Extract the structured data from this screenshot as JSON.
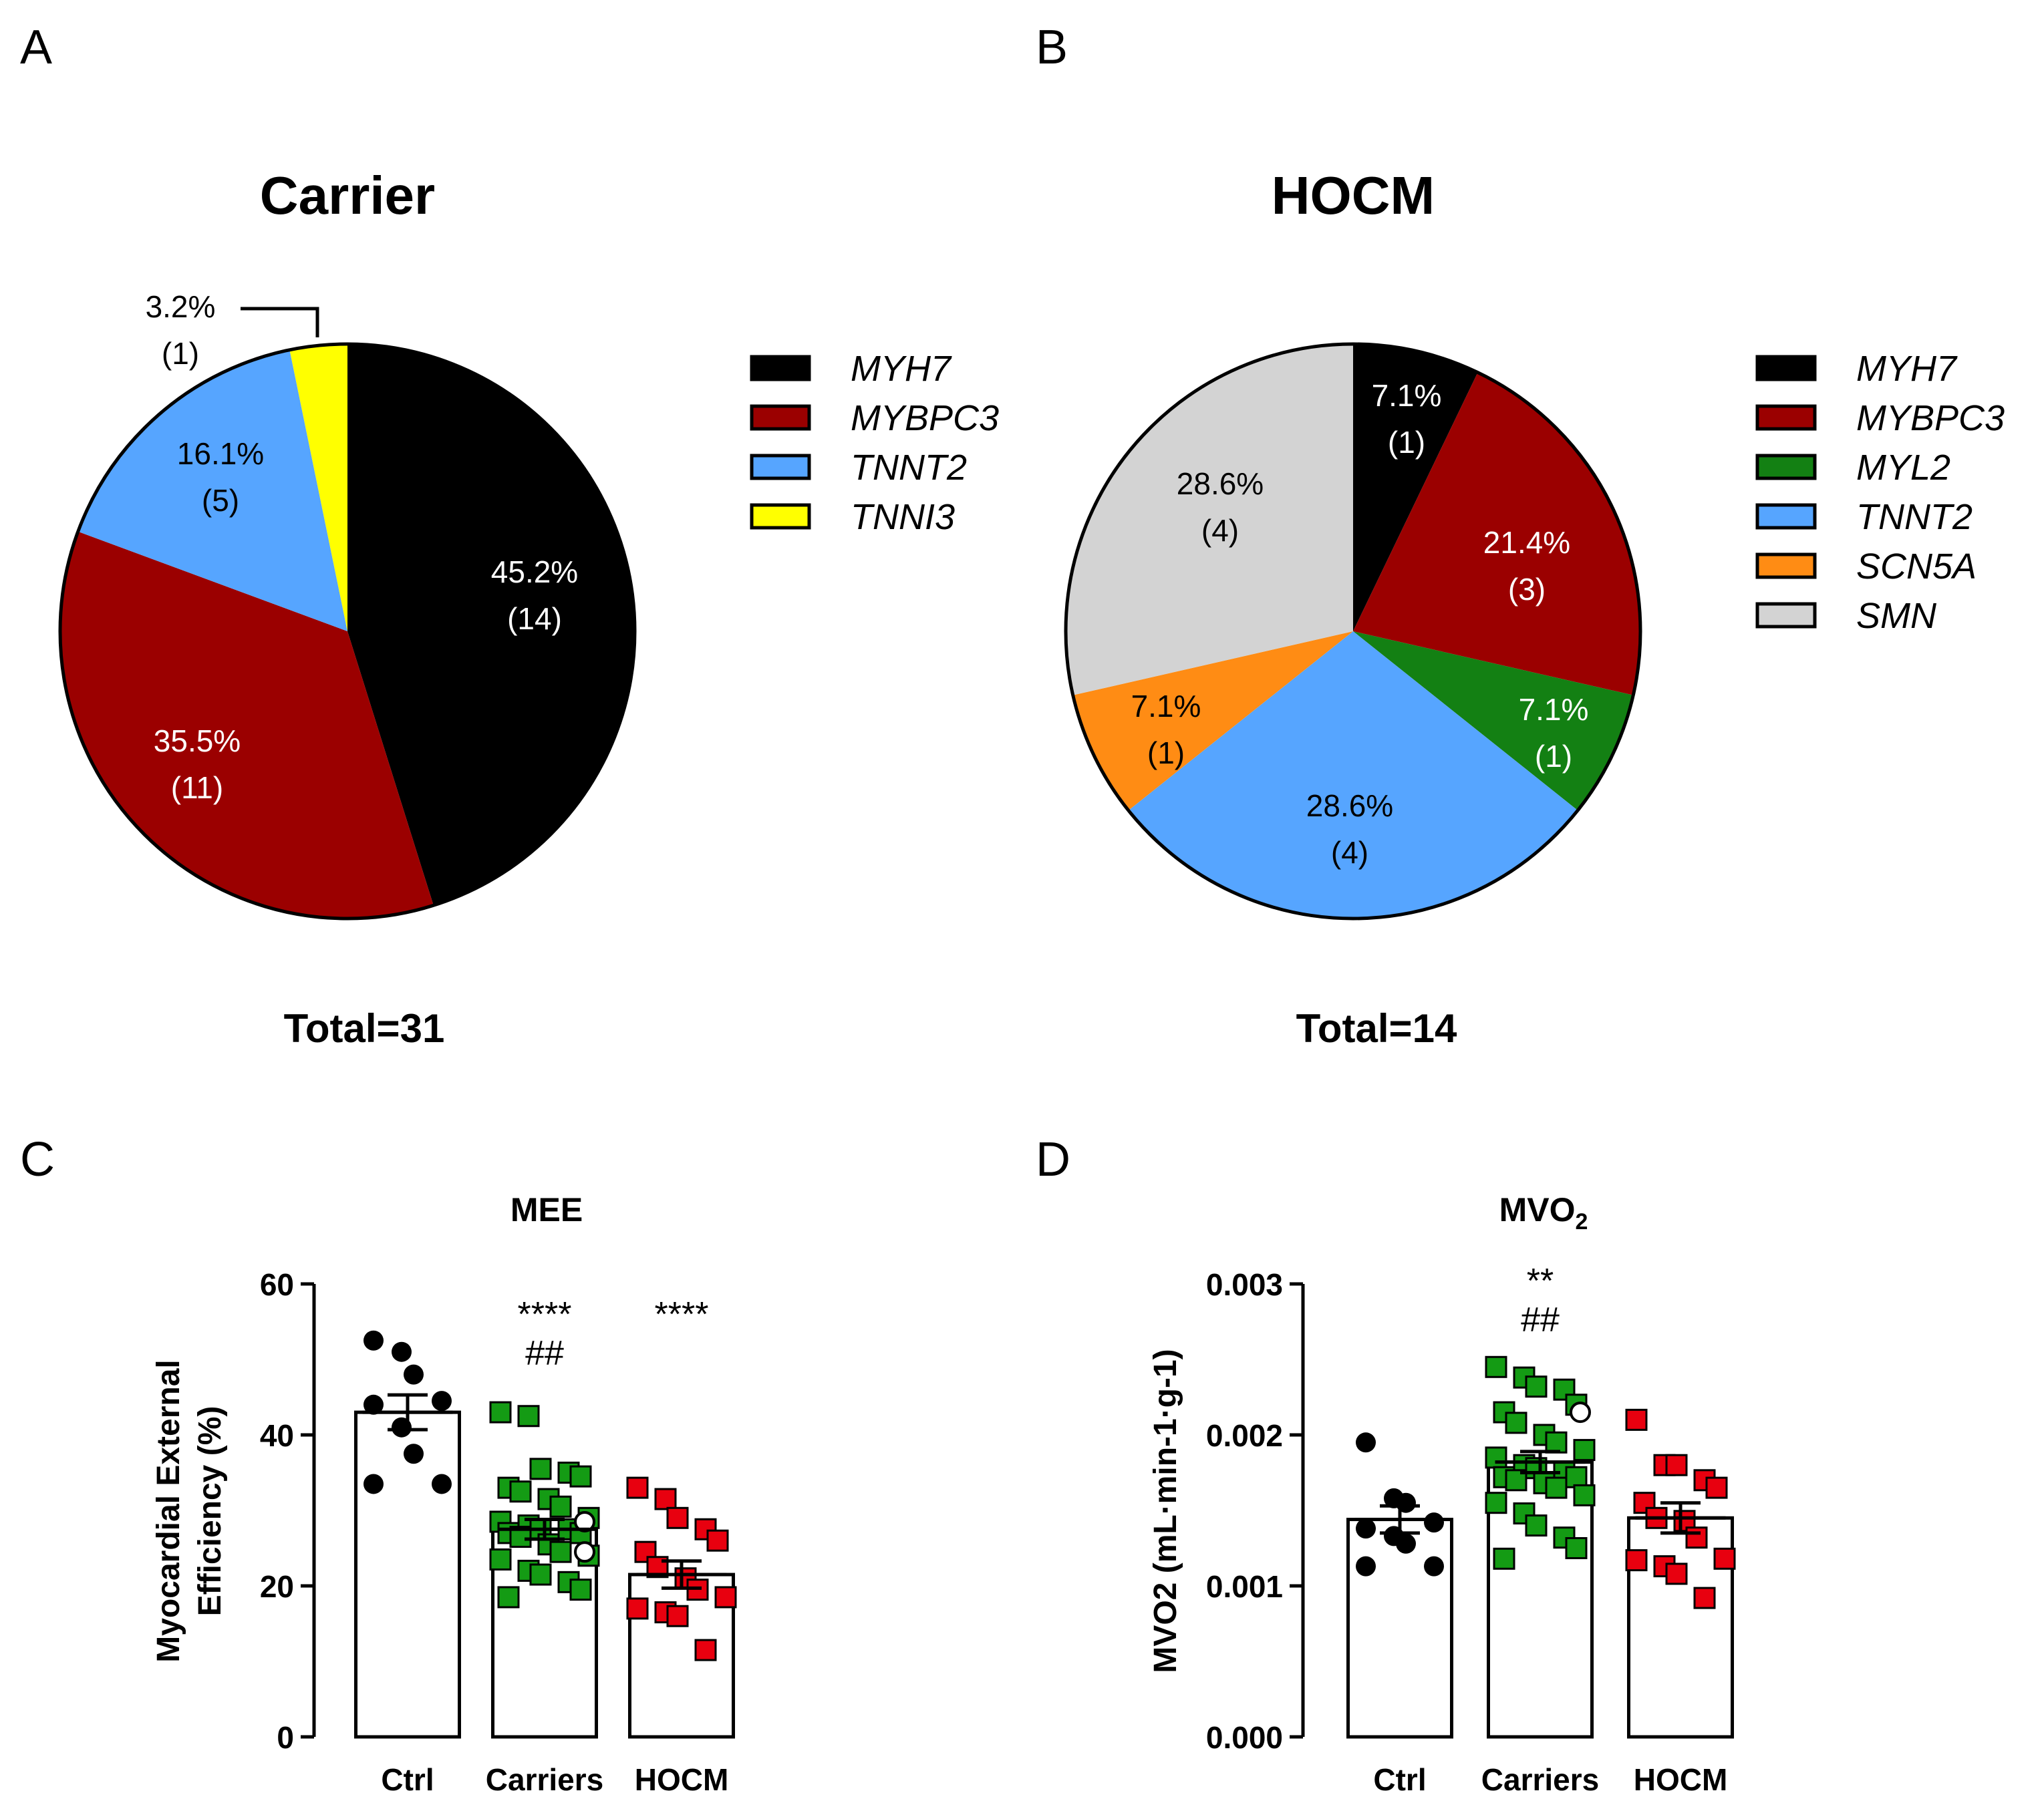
{
  "panel_letters": [
    "A",
    "B",
    "C",
    "D"
  ],
  "chart_data": [
    {
      "type": "pie",
      "title": "Carrier",
      "total_label": "Total=31",
      "slices": [
        {
          "gene": "MYH7",
          "count": 14,
          "percent_label": "45.2%",
          "count_label": "(14)",
          "color": "#000000",
          "label_color": "#ffffff"
        },
        {
          "gene": "MYBPC3",
          "count": 11,
          "percent_label": "35.5%",
          "count_label": "(11)",
          "color": "#9b0000",
          "label_color": "#ffffff"
        },
        {
          "gene": "TNNT2",
          "count": 5,
          "percent_label": "16.1%",
          "count_label": "(5)",
          "color": "#56a5ff",
          "label_color": "#000000"
        },
        {
          "gene": "TNNI3",
          "count": 1,
          "percent_label": "3.2%",
          "count_label": "(1)",
          "color": "#ffff00",
          "label_color": "#000000",
          "callout": true
        }
      ],
      "legend": [
        "MYH7",
        "MYBPC3",
        "TNNT2",
        "TNNI3"
      ]
    },
    {
      "type": "pie",
      "title": "HOCM",
      "total_label": "Total=14",
      "slices": [
        {
          "gene": "MYH7",
          "count": 1,
          "percent_label": "7.1%",
          "count_label": "(1)",
          "color": "#000000",
          "label_color": "#ffffff"
        },
        {
          "gene": "MYBPC3",
          "count": 3,
          "percent_label": "21.4%",
          "count_label": "(3)",
          "color": "#9b0000",
          "label_color": "#ffffff"
        },
        {
          "gene": "MYL2",
          "count": 1,
          "percent_label": "7.1%",
          "count_label": "(1)",
          "color": "#138013",
          "label_color": "#ffffff"
        },
        {
          "gene": "TNNT2",
          "count": 4,
          "percent_label": "28.6%",
          "count_label": "(4)",
          "color": "#56a5ff",
          "label_color": "#000000"
        },
        {
          "gene": "SCN5A",
          "count": 1,
          "percent_label": "7.1%",
          "count_label": "(1)",
          "color": "#ff8c14",
          "label_color": "#000000"
        },
        {
          "gene": "SMN",
          "count": 4,
          "percent_label": "28.6%",
          "count_label": "(4)",
          "color": "#d3d3d3",
          "label_color": "#000000"
        }
      ],
      "legend": [
        "MYH7",
        "MYBPC3",
        "MYL2",
        "TNNT2",
        "SCN5A",
        "SMN"
      ]
    },
    {
      "type": "bar",
      "title": "MEE",
      "ylabel_lines": [
        "Myocardial External",
        "Efficiency (%)"
      ],
      "ylim": [
        0,
        60
      ],
      "yticks": [
        0,
        20,
        40,
        60
      ],
      "tick_labels": [
        "0",
        "20",
        "40",
        "60"
      ],
      "categories": [
        "Ctrl",
        "Carriers",
        "HOCM"
      ],
      "means": [
        43,
        27.5,
        21.5
      ],
      "sem": [
        2.3,
        1.3,
        1.8
      ],
      "annotations": [
        [],
        [
          "****",
          "##"
        ],
        [
          "****"
        ]
      ],
      "marker_colors": [
        "#000000",
        "#149b14",
        "#e8000f"
      ],
      "points": [
        [
          52.5,
          51,
          48,
          44.5,
          44,
          41,
          37.5,
          33.5,
          33.5
        ],
        [
          43,
          42.5,
          35.5,
          35,
          34.5,
          33,
          32.5,
          31.5,
          30.5,
          29,
          28.5,
          28,
          27.5,
          27.5,
          27,
          27,
          26.5,
          25.5,
          24.5,
          24,
          23.5,
          22,
          21.5,
          20.5,
          19.5,
          18.5
        ],
        [
          33,
          31.5,
          29,
          27.5,
          26,
          24.5,
          22.5,
          21,
          19.5,
          18.5,
          17,
          16.5,
          16,
          11.5
        ]
      ],
      "open_points": [
        [],
        [
          28.5,
          24.5
        ],
        []
      ]
    },
    {
      "type": "bar",
      "title_main": "MVO",
      "title_sub": "2",
      "ylabel": "MVO2 (mL·min-1·g-1)",
      "ylim": [
        0,
        0.003
      ],
      "yticks": [
        0,
        0.001,
        0.002,
        0.003
      ],
      "tick_labels": [
        "0.000",
        "0.001",
        "0.002",
        "0.003"
      ],
      "categories": [
        "Ctrl",
        "Carriers",
        "HOCM"
      ],
      "means": [
        0.00144,
        0.00182,
        0.00145
      ],
      "sem": [
        9e-05,
        7e-05,
        0.0001
      ],
      "annotations": [
        [],
        [
          "**",
          "##"
        ],
        []
      ],
      "marker_colors": [
        "#000000",
        "#149b14",
        "#e8000f"
      ],
      "points": [
        [
          0.00195,
          0.00158,
          0.00155,
          0.00142,
          0.00138,
          0.00133,
          0.00128,
          0.00113,
          0.00113
        ],
        [
          0.00245,
          0.00238,
          0.00232,
          0.0023,
          0.0022,
          0.00215,
          0.00208,
          0.002,
          0.00195,
          0.0019,
          0.00185,
          0.0018,
          0.00178,
          0.00175,
          0.00172,
          0.00172,
          0.0017,
          0.00168,
          0.00165,
          0.0016,
          0.00155,
          0.00148,
          0.0014,
          0.00132,
          0.00125,
          0.00118
        ],
        [
          0.0021,
          0.0018,
          0.0018,
          0.0017,
          0.00165,
          0.00155,
          0.00145,
          0.00143,
          0.00132,
          0.00118,
          0.00117,
          0.00113,
          0.00108,
          0.00092
        ]
      ],
      "open_points": [
        [],
        [
          0.00215
        ],
        []
      ]
    }
  ]
}
